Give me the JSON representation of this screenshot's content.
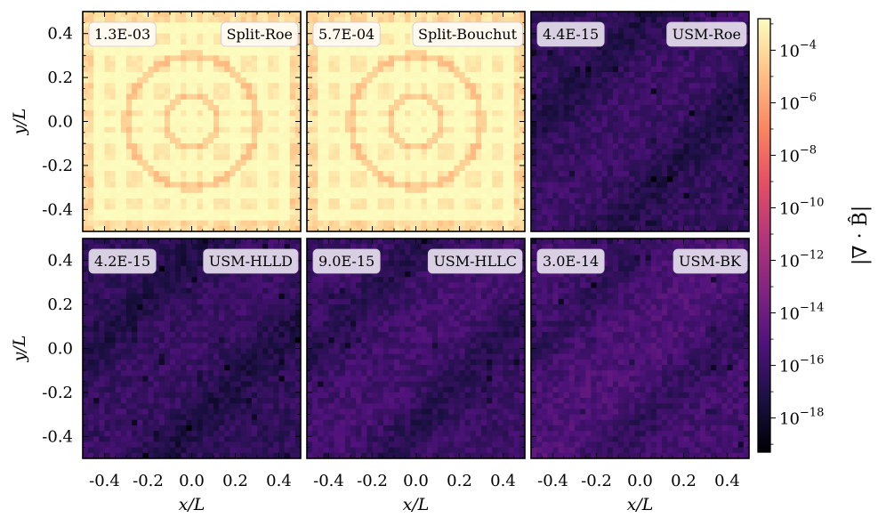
{
  "chart_data": {
    "type": "heatmap",
    "scale": "log",
    "colormap": "magma",
    "xlabel": "x/L",
    "ylabel": "y/L",
    "xlim": [
      -0.5,
      0.5
    ],
    "ylim": [
      -0.5,
      0.5
    ],
    "x_ticks": [
      -0.4,
      -0.2,
      0.0,
      0.2,
      0.4
    ],
    "x_tick_labels": [
      "-0.4",
      "-0.2",
      "0.0",
      "0.2",
      "0.4"
    ],
    "y_ticks": [
      0.4,
      0.2,
      0.0,
      -0.2,
      -0.4
    ],
    "y_tick_labels": [
      "0.4",
      "0.2",
      "0.0",
      "-0.2",
      "-0.4"
    ],
    "colorbar": {
      "label": "|∇ · B̂|",
      "vmin_exp": -19.3,
      "vmax_exp": -2.8,
      "ticks": [
        {
          "exp": -4,
          "label": "10",
          "sup": "−4"
        },
        {
          "exp": -6,
          "label": "10",
          "sup": "−6"
        },
        {
          "exp": -8,
          "label": "10",
          "sup": "−8"
        },
        {
          "exp": -10,
          "label": "10",
          "sup": "−10"
        },
        {
          "exp": -12,
          "label": "10",
          "sup": "−12"
        },
        {
          "exp": -14,
          "label": "10",
          "sup": "−14"
        },
        {
          "exp": -16,
          "label": "10",
          "sup": "−16"
        },
        {
          "exp": -18,
          "label": "10",
          "sup": "−18"
        }
      ]
    },
    "panels": [
      {
        "name": "Split-Roe",
        "max_value": "1.3E-03",
        "pattern": "split"
      },
      {
        "name": "Split-Bouchut",
        "max_value": "5.7E-04",
        "pattern": "split"
      },
      {
        "name": "USM-Roe",
        "max_value": "4.4E-15",
        "pattern": "usm"
      },
      {
        "name": "USM-HLLD",
        "max_value": "4.2E-15",
        "pattern": "usm"
      },
      {
        "name": "USM-HLLC",
        "max_value": "9.0E-15",
        "pattern": "usm"
      },
      {
        "name": "USM-BK",
        "max_value": "3.0E-14",
        "pattern": "usm"
      }
    ]
  },
  "colors": {
    "magma_stops": [
      "#000004",
      "#1c1044",
      "#4f127b",
      "#812581",
      "#b5367a",
      "#e55064",
      "#fb8761",
      "#fec287",
      "#fcfdbf"
    ],
    "label_box_light": "#fffaf3",
    "label_box_purple": "#e6e0ee"
  }
}
